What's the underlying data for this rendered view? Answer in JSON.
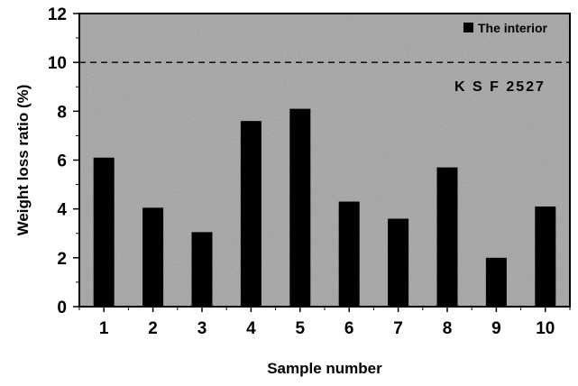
{
  "chart_data": {
    "type": "bar",
    "categories": [
      "1",
      "2",
      "3",
      "4",
      "5",
      "6",
      "7",
      "8",
      "9",
      "10"
    ],
    "series": [
      {
        "name": "The interior",
        "values": [
          6.1,
          4.05,
          3.05,
          7.6,
          8.1,
          4.3,
          3.6,
          5.7,
          2.0,
          4.1
        ]
      }
    ],
    "xlabel": "Sample number",
    "ylabel": "Weight loss ratio (%)",
    "ylim": [
      0,
      12
    ],
    "yticks": [
      0,
      2,
      4,
      6,
      8,
      10,
      12
    ],
    "grid": false,
    "legend_position": "top-right",
    "reference_line": {
      "value": 10,
      "style": "dashed",
      "label": "K S F  2527"
    },
    "colors": {
      "bar": "#000000",
      "plot_background": "#b3b3b3",
      "reference_line": "#000000"
    }
  }
}
